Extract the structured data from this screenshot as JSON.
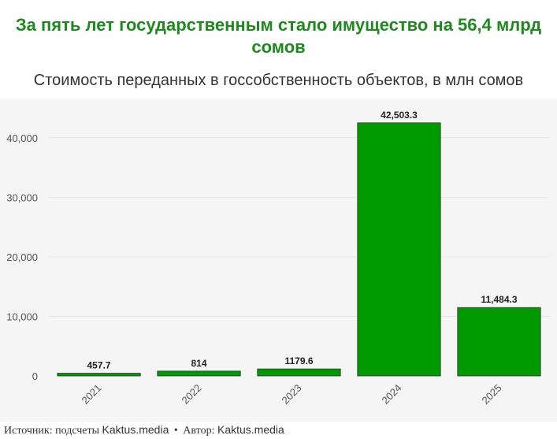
{
  "title": "За пять лет государственным стало имущество на 56,4 млрд сомов",
  "subtitle": "Стоимость переданных в госсобственность объектов, в млн сомов",
  "colors": {
    "title": "#1e8a1e",
    "bar": "#009900",
    "bar_stroke": "#333333"
  },
  "chart_data": {
    "type": "bar",
    "categories": [
      "2021",
      "2022",
      "2023",
      "2024",
      "2025"
    ],
    "values": [
      457.7,
      814,
      1179.6,
      42503.3,
      11484.3
    ],
    "value_labels": [
      "457.7",
      "814",
      "1179.6",
      "42,503.3",
      "11,484.3"
    ],
    "y_ticks": [
      0,
      10000,
      20000,
      30000,
      40000
    ],
    "y_tick_labels": [
      "0",
      "10,000",
      "20,000",
      "30,000",
      "40,000"
    ],
    "ylim": [
      0,
      45000
    ],
    "grid": true,
    "legend": "none"
  },
  "footer": {
    "source_label": "Источник: подсчеты",
    "source_name": "Kaktus.media",
    "separator": "•",
    "author_label": "Автор:",
    "author_name": "Kaktus.media"
  }
}
